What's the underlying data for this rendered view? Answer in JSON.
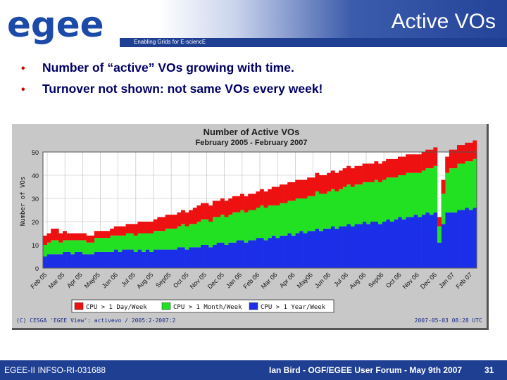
{
  "header": {
    "logo_text": "egee",
    "title": "Active VOs",
    "tagline": "Enabling Grids for E-sciencE",
    "colors": {
      "brand_blue": "#1f3f93",
      "logo_blue": "#1c4aa8"
    }
  },
  "bullets": [
    "Number of “active” VOs growing with time.",
    "Turnover not shown:  not same VOs every week!"
  ],
  "chart_data": {
    "type": "area",
    "title": "Number of Active VOs",
    "subtitle": "February 2005 - February 2007",
    "ylabel": "Number of VOs",
    "xlabel": "",
    "ylim": [
      0,
      50
    ],
    "yticks": [
      "0",
      "10",
      "20",
      "30",
      "40",
      "50"
    ],
    "xticks": [
      "Feb 05",
      "Mar 05",
      "Apr 05",
      "May05",
      "Jun 06",
      "Jul 05",
      "Aug 05",
      "Sep05",
      "Oct 05",
      "Nov 05",
      "Dec 05",
      "Jan 06",
      "Feb 06",
      "Mar 06",
      "Apr 06",
      "May06",
      "Jun 06",
      "Jul 06",
      "Aug 06",
      "Sep06",
      "Oct 06",
      "Nov 06",
      "Dec 06",
      "Jan 07",
      "Feb 07"
    ],
    "stacked": true,
    "grid": true,
    "legend_position": "bottom",
    "series": [
      {
        "name": "CPU > 1 Year/Week",
        "color": "#1c2fe8",
        "values": [
          5,
          6,
          6,
          6,
          6,
          7,
          7,
          6,
          7,
          7,
          6,
          6,
          6,
          7,
          7,
          7,
          7,
          7,
          8,
          7,
          8,
          8,
          8,
          7,
          8,
          7,
          8,
          7,
          8,
          8,
          8,
          8,
          8,
          8,
          9,
          9,
          8,
          9,
          9,
          9,
          10,
          10,
          9,
          10,
          11,
          11,
          10,
          11,
          11,
          12,
          12,
          11,
          12,
          12,
          13,
          13,
          12,
          13,
          14,
          13,
          14,
          14,
          15,
          14,
          15,
          16,
          15,
          16,
          16,
          17,
          16,
          17,
          17,
          18,
          17,
          18,
          18,
          19,
          18,
          19,
          19,
          20,
          19,
          20,
          20,
          19,
          20,
          21,
          20,
          21,
          22,
          21,
          22,
          22,
          23,
          22,
          23,
          24,
          23,
          24,
          11,
          19,
          24,
          24,
          24,
          25,
          25,
          26,
          25,
          26
        ]
      },
      {
        "name": "CPU > 1 Month/Week",
        "color": "#22e022",
        "values": [
          5,
          5,
          6,
          6,
          5,
          5,
          5,
          6,
          5,
          5,
          6,
          5,
          5,
          6,
          6,
          6,
          6,
          7,
          6,
          7,
          6,
          7,
          7,
          7,
          7,
          8,
          7,
          8,
          8,
          8,
          8,
          9,
          9,
          9,
          9,
          10,
          10,
          10,
          10,
          11,
          11,
          11,
          11,
          12,
          11,
          12,
          12,
          12,
          13,
          12,
          13,
          13,
          13,
          13,
          13,
          14,
          14,
          14,
          13,
          14,
          14,
          14,
          14,
          15,
          15,
          14,
          15,
          15,
          15,
          16,
          16,
          15,
          16,
          16,
          16,
          16,
          17,
          17,
          17,
          17,
          17,
          17,
          18,
          17,
          18,
          18,
          18,
          18,
          19,
          18,
          18,
          19,
          19,
          19,
          18,
          19,
          19,
          19,
          20,
          20,
          7,
          13,
          17,
          19,
          19,
          20,
          20,
          20,
          21,
          21
        ]
      },
      {
        "name": "CPU > 1 Day/Week",
        "color": "#ee1111",
        "values": [
          4,
          4,
          5,
          5,
          4,
          4,
          3,
          3,
          3,
          3,
          3,
          3,
          3,
          3,
          3,
          3,
          3,
          3,
          4,
          4,
          4,
          4,
          4,
          5,
          5,
          5,
          5,
          5,
          5,
          6,
          6,
          6,
          6,
          6,
          6,
          6,
          6,
          6,
          7,
          7,
          7,
          7,
          7,
          7,
          7,
          7,
          7,
          7,
          7,
          7,
          7,
          7,
          7,
          7,
          7,
          7,
          7,
          7,
          8,
          8,
          8,
          8,
          8,
          8,
          8,
          8,
          8,
          8,
          8,
          8,
          8,
          8,
          8,
          8,
          8,
          8,
          8,
          8,
          8,
          8,
          8,
          8,
          8,
          8,
          8,
          8,
          8,
          8,
          8,
          8,
          8,
          8,
          8,
          8,
          8,
          8,
          8,
          8,
          8,
          8,
          4,
          6,
          7,
          8,
          8,
          8,
          8,
          8,
          8,
          8
        ]
      }
    ],
    "credit_left": "(C) CESGA 'EGEE View': activevo / 2005:2-2007:2",
    "credit_right": "2007-05-03 08:28 UTC"
  },
  "footer": {
    "left": "EGEE-II INFSO-RI-031688",
    "center": "Ian Bird - OGF/EGEE User Forum - May 9th 2007",
    "page": "31"
  }
}
